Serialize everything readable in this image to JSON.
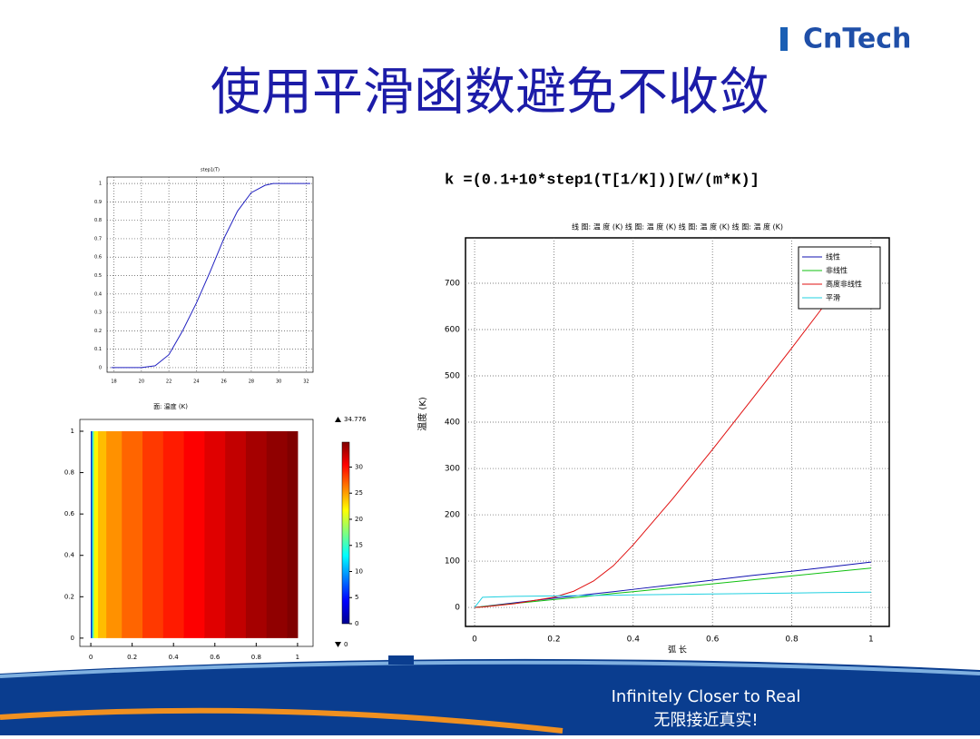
{
  "header": {
    "logo": "CnTech",
    "title": "使用平滑函数避免不收敛"
  },
  "formula": "k =(0.1+10*step1(T[1/K]))[W/(m*K)]",
  "footer": {
    "line1": "Infinitely Closer to Real",
    "line2": "无限接近真实!"
  },
  "chart_data": [
    {
      "type": "line",
      "title": "step1(T)",
      "x": [
        17.8,
        20,
        21,
        22,
        23,
        24,
        25,
        26,
        27,
        28,
        29,
        29.6,
        30,
        32.3
      ],
      "series": [
        {
          "name": "step1",
          "color": "#2020c0",
          "values": [
            0,
            0,
            0.01,
            0.07,
            0.2,
            0.35,
            0.52,
            0.7,
            0.85,
            0.95,
            0.99,
            1,
            1,
            1
          ]
        }
      ],
      "xlim": [
        17.5,
        32.5
      ],
      "xticks": [
        18,
        20,
        22,
        24,
        26,
        28,
        30,
        32
      ],
      "ylim": [
        -0.025,
        1.035
      ],
      "yticks": [
        0,
        0.1,
        0.2,
        0.3,
        0.4,
        0.5,
        0.6,
        0.7,
        0.8,
        0.9,
        1
      ],
      "grid": true
    },
    {
      "type": "surface",
      "title": "面: 温度 (K)",
      "x": [
        0,
        0.005,
        0.01,
        0.02,
        0.05,
        0.1,
        0.2,
        0.3,
        0.4,
        0.5,
        0.6,
        0.7,
        0.8,
        0.9,
        1
      ],
      "values": [
        0,
        8,
        16,
        22,
        24,
        25.5,
        27,
        28.5,
        29.5,
        30.5,
        31.5,
        32.5,
        33.5,
        34.2,
        34.776
      ],
      "xlim": [
        -0.053,
        1.075
      ],
      "xticks": [
        0,
        0.2,
        0.4,
        0.6,
        0.8,
        1
      ],
      "ylim": [
        -0.04,
        1.057
      ],
      "yticks": [
        0,
        0.2,
        0.4,
        0.6,
        0.8,
        1
      ],
      "cmin": 0,
      "cmax": 34.776,
      "cticks": [
        0,
        5,
        10,
        15,
        20,
        25,
        30
      ]
    },
    {
      "type": "line",
      "title": "线 图: 温 度 (K) 线 图: 温 度 (K) 线 图: 温 度 (K) 线 图: 温 度 (K)",
      "xlabel": "弧 长",
      "ylabel": "温度 (K)",
      "x": [
        0,
        0.02,
        0.1,
        0.2,
        0.25,
        0.3,
        0.35,
        0.4,
        0.5,
        0.6,
        0.7,
        0.8,
        0.88,
        1
      ],
      "series": [
        {
          "name": "线性",
          "color": "#1010b0",
          "values": [
            0,
            2,
            10,
            20,
            24.5,
            29.4,
            34,
            39,
            49,
            59,
            69,
            78,
            86,
            98
          ]
        },
        {
          "name": "非线性",
          "color": "#10c010",
          "values": [
            0,
            1.7,
            8.5,
            17,
            21,
            25.5,
            30,
            34,
            42.5,
            51,
            59.5,
            68,
            75,
            85
          ]
        },
        {
          "name": "高度非线性",
          "color": "#e01010",
          "values": [
            0,
            1,
            8,
            22,
            35,
            57,
            90,
            135,
            235,
            341,
            450,
            560,
            650,
            null
          ]
        },
        {
          "name": "平滑",
          "color": "#20d0e0",
          "values": [
            0,
            22,
            24,
            25,
            25.5,
            26,
            26.5,
            27,
            28,
            29,
            30,
            31,
            32,
            33
          ]
        }
      ],
      "xlim": [
        -0.023,
        1.046
      ],
      "xticks": [
        0,
        0.2,
        0.4,
        0.6,
        0.8,
        1
      ],
      "ylim": [
        -41,
        798
      ],
      "yticks": [
        0,
        100,
        200,
        300,
        400,
        500,
        600,
        700
      ],
      "grid": true,
      "legend": "top-right"
    }
  ]
}
